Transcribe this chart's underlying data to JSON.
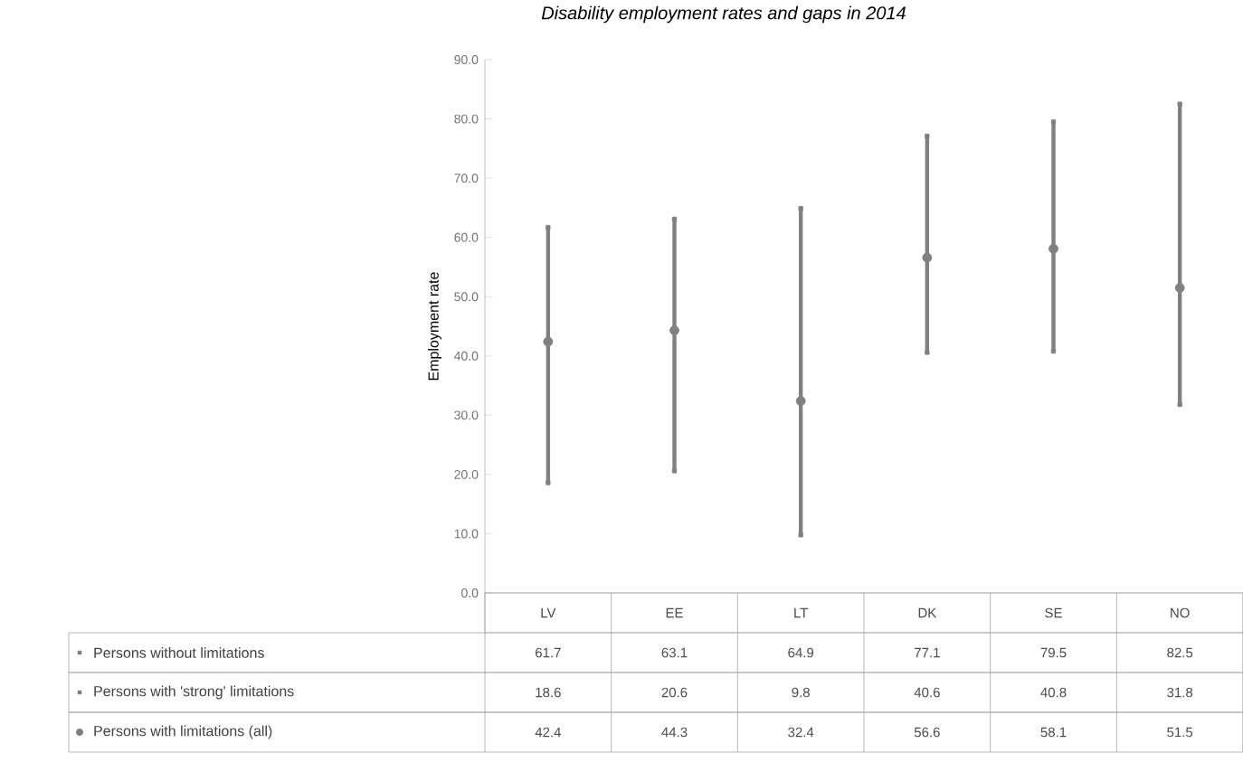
{
  "chart_data": {
    "type": "scatter",
    "title": "Disability employment rates and gaps in 2014",
    "ylabel": "Employment rate",
    "categories": [
      "LV",
      "EE",
      "LT",
      "DK",
      "SE",
      "NO"
    ],
    "series": [
      {
        "name": "Persons without limitations",
        "marker": "square",
        "color": "#808080",
        "values": [
          61.7,
          63.1,
          64.9,
          77.1,
          79.5,
          82.5
        ]
      },
      {
        "name": "Persons with 'strong' limitations",
        "marker": "square",
        "color": "#808080",
        "values": [
          18.6,
          20.6,
          9.8,
          40.6,
          40.8,
          31.8
        ]
      },
      {
        "name": "Persons with limitations (all)",
        "marker": "circle",
        "color": "#808080",
        "values": [
          42.4,
          44.3,
          32.4,
          56.6,
          58.1,
          51.5
        ],
        "errors": [
          [
            18.6,
            61.7
          ],
          [
            20.6,
            63.1
          ],
          [
            9.8,
            64.9
          ],
          [
            40.6,
            77.1
          ],
          [
            40.8,
            79.5
          ],
          [
            31.8,
            82.5
          ]
        ]
      }
    ],
    "ylim": [
      0,
      90
    ],
    "yticks": [
      {
        "value": 0,
        "label": "0.0"
      },
      {
        "value": 10,
        "label": "10.0"
      },
      {
        "value": 20,
        "label": "20.0"
      },
      {
        "value": 30,
        "label": "30.0"
      },
      {
        "value": 40,
        "label": "40.0"
      },
      {
        "value": 50,
        "label": "50.0"
      },
      {
        "value": 60,
        "label": "60.0"
      },
      {
        "value": 70,
        "label": "70.0"
      },
      {
        "value": 80,
        "label": "80.0"
      },
      {
        "value": 90,
        "label": "90.0"
      }
    ],
    "grid": false,
    "legend": "bottom left",
    "data_labels": true
  }
}
